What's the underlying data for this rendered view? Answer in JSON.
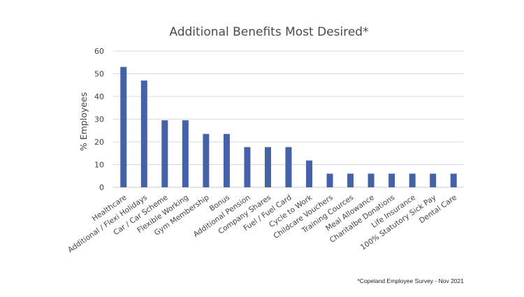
{
  "chart_data": {
    "type": "bar",
    "title": "Additional Benefits Most Desired*",
    "xlabel": "",
    "ylabel": "% Employees",
    "ylim": [
      0,
      60
    ],
    "yticks": [
      0,
      10,
      20,
      30,
      40,
      50,
      60
    ],
    "grid": true,
    "legend": "none",
    "bar_color": "#4561a8",
    "categories": [
      "Healthcare",
      "Additional / Flexi Holidays",
      "Car / Car Scheme",
      "Flexible Working",
      "Gym Membership",
      "Bonus",
      "Additional Pension",
      "Company Shares",
      "Fuel / Fuel Card",
      "Cycle to Work",
      "Childcare Vouchers",
      "Training Cources",
      "Meal Allowance",
      "Charitalbe Donations",
      "Life Insurance",
      "100% Statutory Sick Pay",
      "Dental Care"
    ],
    "values": [
      53,
      47,
      29.5,
      29.5,
      23.5,
      23.5,
      17.7,
      17.7,
      17.7,
      11.8,
      6,
      6,
      6,
      6,
      6,
      6,
      6
    ]
  },
  "footnote": "*Copeland Employee Survey - Nov 2021"
}
